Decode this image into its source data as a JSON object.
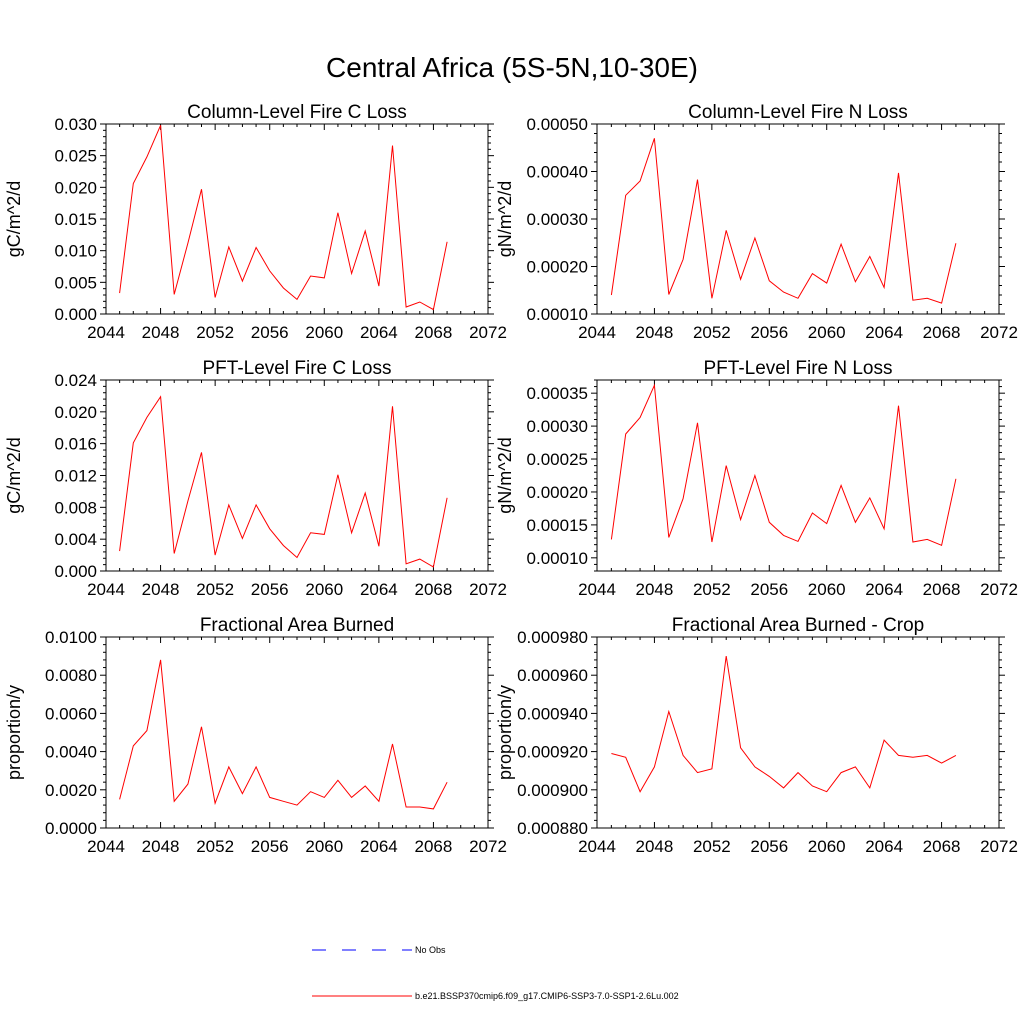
{
  "figure_title": "Central Africa (5S-5N,10-30E)",
  "colors": {
    "model_line": "#ff0000",
    "obs_line": "#0000ff",
    "axes": "#000000"
  },
  "legend": [
    {
      "label": "No Obs",
      "style": "dashed",
      "color": "#0000ff"
    },
    {
      "label": "b.e21.BSSP370cmip6.f09_g17.CMIP6-SSP3-7.0-SSP1-2.6Lu.002",
      "style": "solid",
      "color": "#ff0000"
    }
  ],
  "chart_data": [
    {
      "type": "line",
      "title": "Column-Level Fire C Loss",
      "ylabel": "gC/m^2/d",
      "xlim": [
        2044,
        2072
      ],
      "xticks": [
        2044,
        2048,
        2052,
        2056,
        2060,
        2064,
        2068,
        2072
      ],
      "ylim": [
        0,
        0.03
      ],
      "yticks": [
        "0.000",
        "0.005",
        "0.010",
        "0.015",
        "0.020",
        "0.025",
        "0.030"
      ],
      "x": [
        2045,
        2046,
        2047,
        2048,
        2049,
        2050,
        2051,
        2052,
        2053,
        2054,
        2055,
        2056,
        2057,
        2058,
        2059,
        2060,
        2061,
        2062,
        2063,
        2064,
        2065,
        2066,
        2067,
        2068,
        2069
      ],
      "series": [
        {
          "values": [
            0.0033,
            0.0206,
            0.0248,
            0.0298,
            0.0031,
            0.0112,
            0.0197,
            0.0026,
            0.0106,
            0.0052,
            0.0105,
            0.0068,
            0.0041,
            0.0023,
            0.006,
            0.0057,
            0.016,
            0.0064,
            0.0131,
            0.0044,
            0.0266,
            0.0011,
            0.0019,
            0.0007,
            0.0114
          ]
        }
      ]
    },
    {
      "type": "line",
      "title": "Column-Level Fire N Loss",
      "ylabel": "gN/m^2/d",
      "xlim": [
        2044,
        2072
      ],
      "xticks": [
        2044,
        2048,
        2052,
        2056,
        2060,
        2064,
        2068,
        2072
      ],
      "ylim": [
        0.0001,
        0.0005
      ],
      "yticks": [
        "0.00010",
        "0.00020",
        "0.00030",
        "0.00040",
        "0.00050"
      ],
      "x": [
        2045,
        2046,
        2047,
        2048,
        2049,
        2050,
        2051,
        2052,
        2053,
        2054,
        2055,
        2056,
        2057,
        2058,
        2059,
        2060,
        2061,
        2062,
        2063,
        2064,
        2065,
        2066,
        2067,
        2068,
        2069
      ],
      "series": [
        {
          "values": [
            0.00014,
            0.00035,
            0.00038,
            0.00047,
            0.000141,
            0.000215,
            0.000383,
            0.000133,
            0.000276,
            0.000173,
            0.00026,
            0.00017,
            0.000146,
            0.000133,
            0.000185,
            0.000165,
            0.000247,
            0.000168,
            0.000221,
            0.000156,
            0.000397,
            0.000129,
            0.000133,
            0.000123,
            0.000249
          ]
        }
      ]
    },
    {
      "type": "line",
      "title": "PFT-Level Fire C Loss",
      "ylabel": "gC/m^2/d",
      "xlim": [
        2044,
        2072
      ],
      "xticks": [
        2044,
        2048,
        2052,
        2056,
        2060,
        2064,
        2068,
        2072
      ],
      "ylim": [
        0,
        0.024
      ],
      "yticks": [
        "0.000",
        "0.004",
        "0.008",
        "0.012",
        "0.016",
        "0.020",
        "0.024"
      ],
      "x": [
        2045,
        2046,
        2047,
        2048,
        2049,
        2050,
        2051,
        2052,
        2053,
        2054,
        2055,
        2056,
        2057,
        2058,
        2059,
        2060,
        2061,
        2062,
        2063,
        2064,
        2065,
        2066,
        2067,
        2068,
        2069
      ],
      "series": [
        {
          "values": [
            0.0025,
            0.0161,
            0.0193,
            0.0219,
            0.0022,
            0.0088,
            0.0149,
            0.002,
            0.0083,
            0.0041,
            0.0083,
            0.0053,
            0.0032,
            0.0017,
            0.0048,
            0.0046,
            0.0121,
            0.0048,
            0.0098,
            0.0031,
            0.0207,
            0.0009,
            0.0015,
            0.0005,
            0.0092
          ]
        }
      ]
    },
    {
      "type": "line",
      "title": "PFT-Level Fire N Loss",
      "ylabel": "gN/m^2/d",
      "xlim": [
        2044,
        2072
      ],
      "xticks": [
        2044,
        2048,
        2052,
        2056,
        2060,
        2064,
        2068,
        2072
      ],
      "ylim": [
        8e-05,
        0.00037
      ],
      "yticks": [
        "0.00010",
        "0.00015",
        "0.00020",
        "0.00025",
        "0.00030",
        "0.00035"
      ],
      "x": [
        2045,
        2046,
        2047,
        2048,
        2049,
        2050,
        2051,
        2052,
        2053,
        2054,
        2055,
        2056,
        2057,
        2058,
        2059,
        2060,
        2061,
        2062,
        2063,
        2064,
        2065,
        2066,
        2067,
        2068,
        2069
      ],
      "series": [
        {
          "values": [
            0.000128,
            0.000288,
            0.000313,
            0.000362,
            0.000131,
            0.00019,
            0.000305,
            0.000124,
            0.00024,
            0.000158,
            0.000225,
            0.000154,
            0.000134,
            0.000125,
            0.000168,
            0.000152,
            0.00021,
            0.000154,
            0.000191,
            0.000144,
            0.000331,
            0.000124,
            0.000128,
            0.000119,
            0.00022
          ]
        }
      ]
    },
    {
      "type": "line",
      "title": "Fractional Area Burned",
      "ylabel": "proportion/y",
      "xlim": [
        2044,
        2072
      ],
      "xticks": [
        2044,
        2048,
        2052,
        2056,
        2060,
        2064,
        2068,
        2072
      ],
      "ylim": [
        0,
        0.01
      ],
      "yticks": [
        "0.0000",
        "0.0020",
        "0.0040",
        "0.0060",
        "0.0080",
        "0.0100"
      ],
      "x": [
        2045,
        2046,
        2047,
        2048,
        2049,
        2050,
        2051,
        2052,
        2053,
        2054,
        2055,
        2056,
        2057,
        2058,
        2059,
        2060,
        2061,
        2062,
        2063,
        2064,
        2065,
        2066,
        2067,
        2068,
        2069
      ],
      "series": [
        {
          "values": [
            0.0015,
            0.0043,
            0.0051,
            0.0088,
            0.0014,
            0.0023,
            0.0053,
            0.0013,
            0.0032,
            0.0018,
            0.0032,
            0.0016,
            0.0014,
            0.0012,
            0.0019,
            0.0016,
            0.0025,
            0.0016,
            0.0022,
            0.0014,
            0.0044,
            0.0011,
            0.0011,
            0.001,
            0.0024
          ]
        }
      ]
    },
    {
      "type": "line",
      "title": "Fractional Area Burned - Crop",
      "ylabel": "proportion/y",
      "xlim": [
        2044,
        2072
      ],
      "xticks": [
        2044,
        2048,
        2052,
        2056,
        2060,
        2064,
        2068,
        2072
      ],
      "ylim": [
        0.00088,
        0.00098
      ],
      "yticks": [
        "0.000880",
        "0.000900",
        "0.000920",
        "0.000940",
        "0.000960",
        "0.000980"
      ],
      "x": [
        2045,
        2046,
        2047,
        2048,
        2049,
        2050,
        2051,
        2052,
        2053,
        2054,
        2055,
        2056,
        2057,
        2058,
        2059,
        2060,
        2061,
        2062,
        2063,
        2064,
        2065,
        2066,
        2067,
        2068,
        2069
      ],
      "series": [
        {
          "values": [
            0.000919,
            0.000917,
            0.000899,
            0.000912,
            0.000941,
            0.000918,
            0.000909,
            0.000911,
            0.00097,
            0.000922,
            0.000912,
            0.000907,
            0.000901,
            0.000909,
            0.000902,
            0.000899,
            0.000909,
            0.000912,
            0.000901,
            0.000926,
            0.000918,
            0.000917,
            0.000918,
            0.000914,
            0.000918
          ]
        }
      ]
    }
  ]
}
